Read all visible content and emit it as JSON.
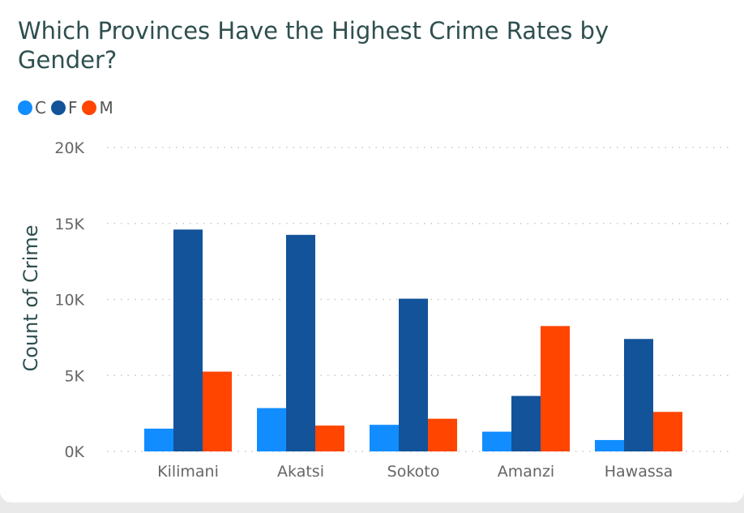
{
  "chart_data": {
    "type": "bar",
    "title": "Which Provinces Have the Highest Crime Rates by Gender?",
    "xlabel": "",
    "ylabel": "Count of Crime",
    "ylim": [
      0,
      20000
    ],
    "yticks": [
      {
        "value": 0,
        "label": "0K"
      },
      {
        "value": 5000,
        "label": "5K"
      },
      {
        "value": 10000,
        "label": "10K"
      },
      {
        "value": 15000,
        "label": "15K"
      },
      {
        "value": 20000,
        "label": "20K"
      }
    ],
    "grid": true,
    "legend_placement": "top-left",
    "categories": [
      "Kilimani",
      "Akatsi",
      "Sokoto",
      "Amanzi",
      "Hawassa"
    ],
    "series": [
      {
        "name": "C",
        "color": "#118DFF",
        "values": [
          1500,
          2850,
          1750,
          1300,
          750
        ]
      },
      {
        "name": "F",
        "color": "#12539A",
        "values": [
          14600,
          14250,
          10050,
          3650,
          7400
        ]
      },
      {
        "name": "M",
        "color": "#FF4500",
        "values": [
          5250,
          1700,
          2150,
          8250,
          2600
        ]
      }
    ]
  }
}
